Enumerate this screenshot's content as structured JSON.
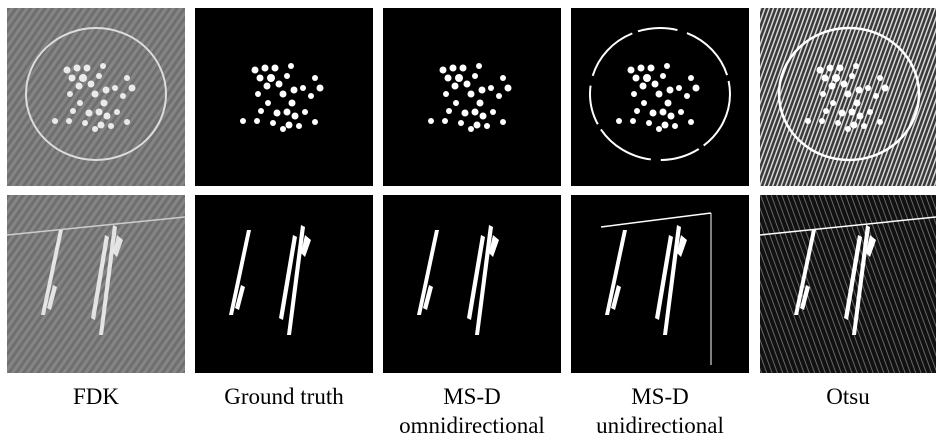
{
  "columns": [
    {
      "lines": [
        "FDK"
      ]
    },
    {
      "lines": [
        "Ground truth"
      ]
    },
    {
      "lines": [
        "MS-D",
        "omnidirectional"
      ]
    },
    {
      "lines": [
        "MS-D",
        "unidirectional"
      ]
    },
    {
      "lines": [
        "Otsu"
      ]
    }
  ]
}
